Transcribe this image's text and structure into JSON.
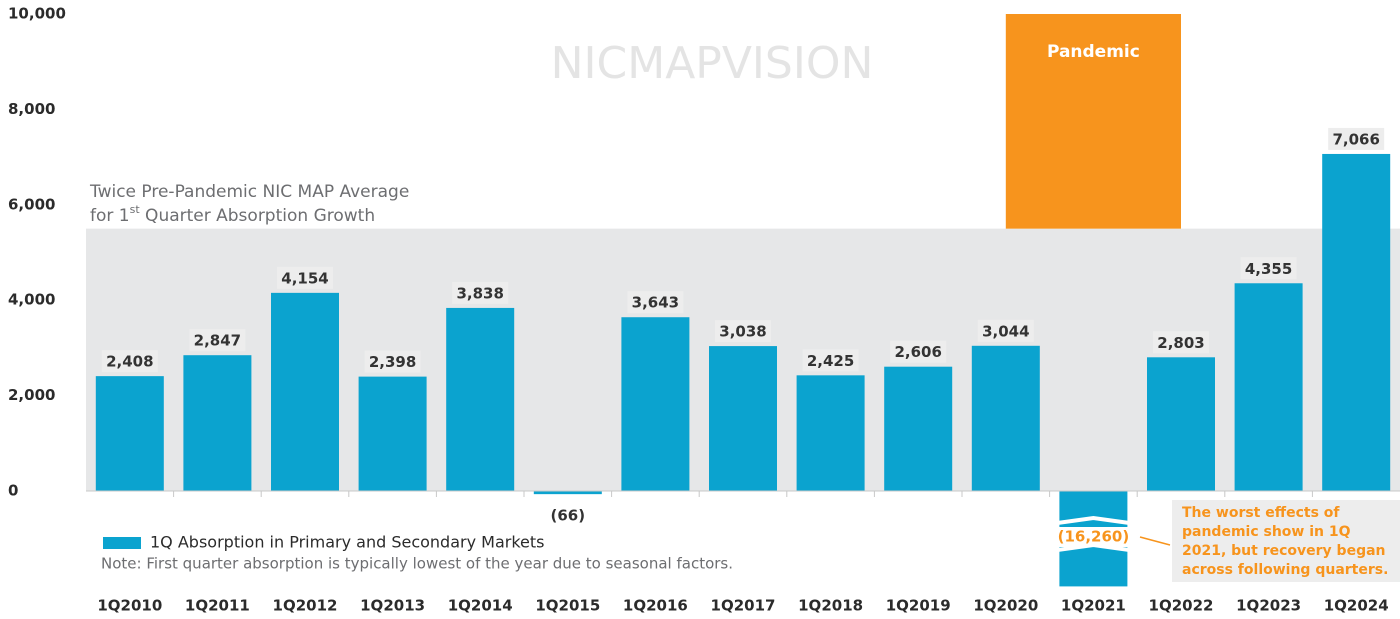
{
  "chart_data": {
    "type": "bar",
    "watermark": "NICMAPVISION",
    "categories": [
      "1Q2010",
      "1Q2011",
      "1Q2012",
      "1Q2013",
      "1Q2014",
      "1Q2015",
      "1Q2016",
      "1Q2017",
      "1Q2018",
      "1Q2019",
      "1Q2020",
      "1Q2021",
      "1Q2022",
      "1Q2023",
      "1Q2024"
    ],
    "series": [
      {
        "name": "1Q Absorption in Primary and Secondary Markets",
        "color": "#0ba3cf",
        "values": [
          2408,
          2847,
          4154,
          2398,
          3838,
          -66,
          3643,
          3038,
          2425,
          2606,
          3044,
          -16260,
          2803,
          4355,
          7066
        ],
        "value_labels": [
          "2,408",
          "2,847",
          "4,154",
          "2,398",
          "3,838",
          "(66)",
          "3,643",
          "3,038",
          "2,425",
          "2,606",
          "3,044",
          "(16,260)",
          "2,803",
          "4,355",
          "7,066"
        ]
      }
    ],
    "ylim": [
      -2000,
      10000
    ],
    "yticks": [
      0,
      {
        "value": 2000,
        "label": "2,000"
      },
      {
        "value": 4000,
        "label": "4,000"
      },
      {
        "value": 6000,
        "label": "6,000"
      },
      {
        "value": 8000,
        "label": "8,000"
      },
      {
        "value": 10000,
        "label": "10,000"
      }
    ],
    "reference_band": {
      "value": 5500,
      "label_lines": [
        "Twice Pre-Pandemic NIC MAP Average",
        [
          "for 1",
          "st",
          " Quarter Absorption Growth"
        ]
      ]
    },
    "pandemic_label": "Pandemic",
    "note": "Note: First quarter absorption is typically lowest of the year due to seasonal factors.",
    "annotation": [
      "The worst effects of",
      "pandemic show in 1Q",
      "2021, but recovery began",
      "across following quarters."
    ]
  }
}
